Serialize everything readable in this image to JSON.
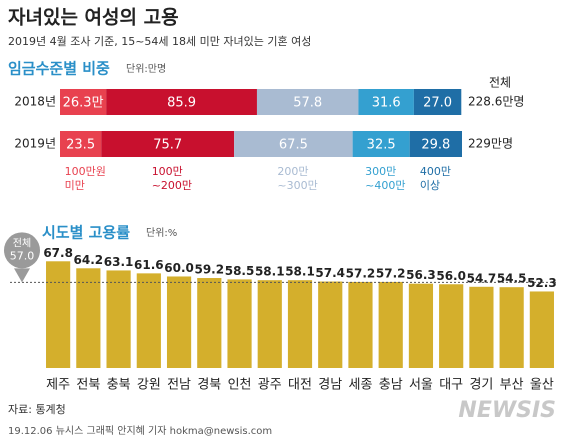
{
  "title": "자녀있는 여성의 고용",
  "subtitle": "2019년 4월 조사 기준, 15~54세 18세 미만 자녀있는 기혼 여성",
  "source": "자료: 통계청",
  "credit": "19.12.06 뉴시스 그래픽 안지혜 기자 hokma@newsis.com",
  "logo": "NEWSIS",
  "chart_data": [
    {
      "type": "stacked_hbar",
      "title": "임금수준별 비중",
      "unit": "단위:만명",
      "categories": [
        "2018년",
        "2019년"
      ],
      "xlim": [
        0,
        229
      ],
      "series": [
        {
          "name": "100만원\n미만",
          "color": "#e8414f",
          "values": [
            26.3,
            23.5
          ],
          "value_labels": [
            "26.3만",
            "23.5"
          ]
        },
        {
          "name": "100만\n~200만",
          "color": "#c8102e",
          "values": [
            85.9,
            75.7
          ]
        },
        {
          "name": "200만\n~300만",
          "color": "#a9bbd2",
          "values": [
            57.8,
            67.5
          ]
        },
        {
          "name": "300만\n~400만",
          "color": "#34a0d0",
          "values": [
            31.6,
            32.5
          ]
        },
        {
          "name": "400만\n이상",
          "color": "#1f6ea6",
          "values": [
            27.0,
            29.8
          ],
          "value_labels": [
            "27.0",
            "29.8"
          ]
        }
      ],
      "totals_title": "전체",
      "totals": [
        228.6,
        229
      ],
      "total_labels": [
        "228.6만명",
        "229만명"
      ]
    },
    {
      "type": "bar",
      "title": "시도별 고용률",
      "unit": "단위:%",
      "color": "#d4af2c",
      "categories": [
        "제주",
        "전북",
        "충북",
        "강원",
        "전남",
        "경북",
        "인천",
        "광주",
        "대전",
        "경남",
        "세종",
        "충남",
        "서울",
        "대구",
        "경기",
        "부산",
        "울산"
      ],
      "values": [
        67.8,
        64.2,
        63.1,
        61.6,
        60.0,
        59.2,
        58.5,
        58.1,
        58.1,
        57.4,
        57.2,
        57.2,
        56.3,
        56.0,
        54.7,
        54.5,
        52.3
      ],
      "value_labels": [
        "67.8",
        "64.2",
        "63.1",
        "61.6",
        "60.0",
        "59.2",
        "58.5",
        "58.1",
        "58.1",
        "57.4",
        "57.2",
        "57.2",
        "56.3",
        "56.0",
        "54.7",
        "54.5",
        "52.3"
      ],
      "ylim": [
        13,
        70
      ],
      "reference": {
        "label": "전체",
        "value": 57.0,
        "value_label": "57.0"
      }
    }
  ]
}
